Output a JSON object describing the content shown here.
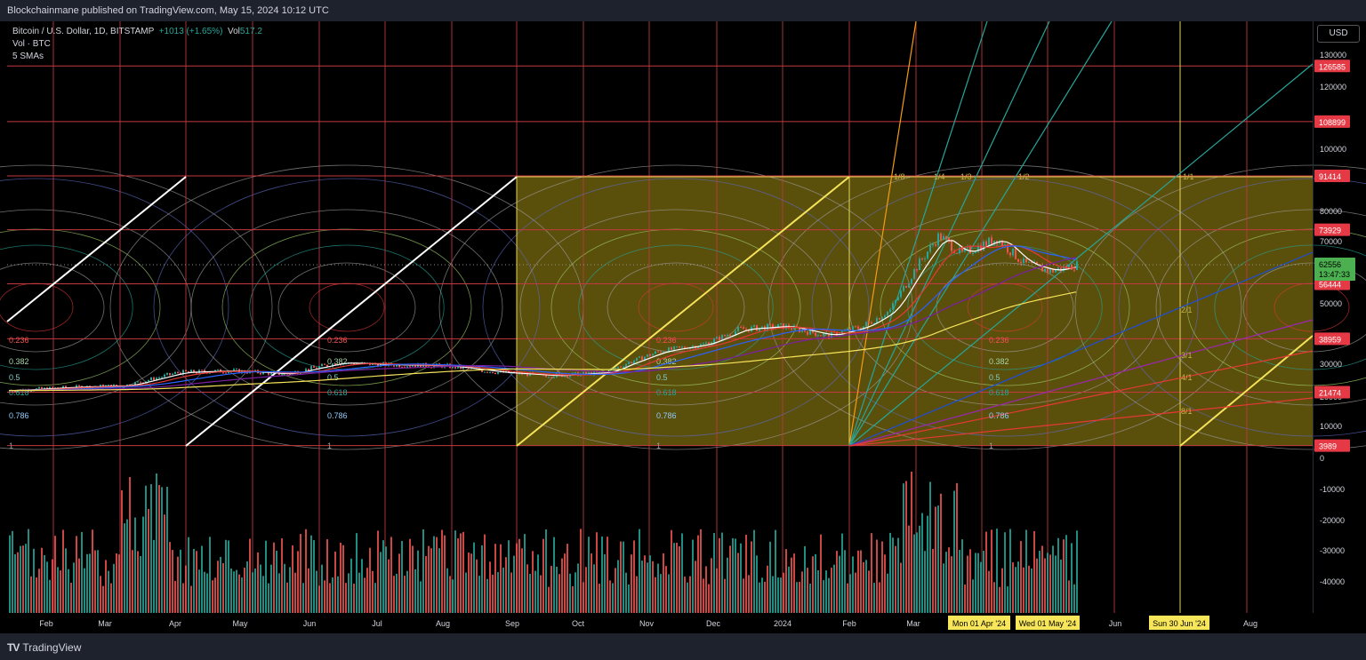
{
  "header": {
    "publisher_line": "Blockchainmane published on TradingView.com, May 15, 2024 10:12 UTC"
  },
  "legend": {
    "symbol": "Bitcoin / U.S. Dollar, 1D, BITSTAMP",
    "change": "+1013 (+1.65%)",
    "vol_label": "Vol",
    "vol_value": "517.2",
    "line2": "Vol · BTC",
    "line3": "5 SMAs"
  },
  "currency_button": "USD",
  "footer": {
    "logo_mark": "TV",
    "logo_text": "TradingView"
  },
  "chart_data": {
    "type": "candlestick",
    "price_ticks": [
      "130000",
      "120000",
      "100000",
      "80000",
      "70000",
      "50000",
      "40000",
      "30000",
      "20000",
      "10000",
      "0"
    ],
    "volume_ticks": [
      "-10000",
      "-20000",
      "-30000",
      "-40000"
    ],
    "levels": [
      "126585",
      "108899",
      "91414",
      "73929",
      "56444",
      "38959",
      "21474",
      "3989"
    ],
    "last_price": {
      "value": "62556",
      "countdown": "13:47:33"
    },
    "x_labels": [
      "Feb",
      "Mar",
      "Apr",
      "May",
      "Jun",
      "Jul",
      "Aug",
      "Sep",
      "Oct",
      "Nov",
      "Dec",
      "2024",
      "Feb",
      "Mar",
      "Jun",
      "Aug"
    ],
    "date_markers": [
      "Mon 01 Apr '24",
      "Wed 01 May '24",
      "Sun 30 Jun '24"
    ],
    "fib_labels": [
      "0.236",
      "0.382",
      "0.5",
      "0.618",
      "0.786",
      "1"
    ],
    "fan_labels": [
      "1/8",
      "1/4",
      "1/3",
      "1/2",
      "1/1",
      "2/1",
      "3/1",
      "4/1",
      "8/1"
    ],
    "colors": {
      "grid": "#c2393f",
      "level_box": "#e53a45",
      "box_fill": "#7a6a10",
      "box_line": "#e6d35a",
      "up": "#26a69a",
      "down": "#ef5350",
      "price_box": "#4caf50",
      "date_box": "#f7e65a"
    }
  }
}
